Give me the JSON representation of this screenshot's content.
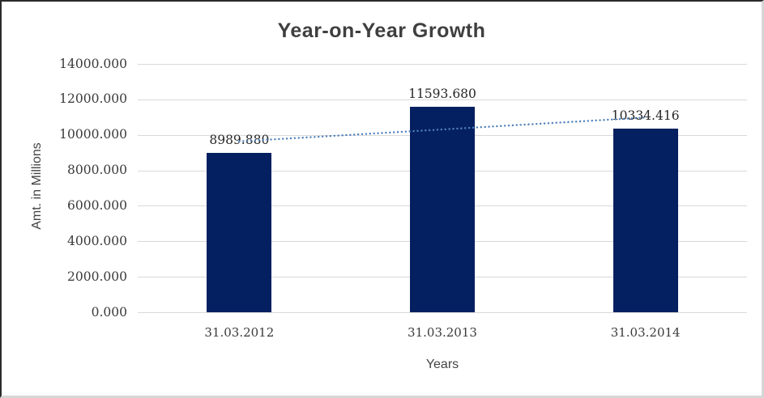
{
  "chart_data": {
    "type": "bar",
    "title": "Year-on-Year Growth",
    "xlabel": "Years",
    "ylabel": "Amt. in Millions",
    "categories": [
      "31.03.2012",
      "31.03.2013",
      "31.03.2014"
    ],
    "values": [
      8989.88,
      11593.68,
      10334.416
    ],
    "data_labels": [
      "8989.880",
      "11593.680",
      "10334.416"
    ],
    "y_tick_labels": [
      "0.000",
      "2000.000",
      "4000.000",
      "6000.000",
      "8000.000",
      "10000.000",
      "12000.000",
      "14000.000"
    ],
    "ylim": [
      0,
      14000
    ],
    "y_tick_step": 2000,
    "grid": true,
    "legend_position": "none",
    "trendline": {
      "type": "linear",
      "style": "dotted",
      "endpoint_values": [
        9633.724,
        10978.26
      ]
    },
    "colors": {
      "bar": "#052060",
      "gridline": "#d9d9d9",
      "trendline": "#4f81bd",
      "title_text": "#3f3f3f",
      "tick_text": "#3a3a3a",
      "data_label_text": "#262626",
      "axis_title_text": "#444444",
      "background": "#ffffff"
    }
  }
}
